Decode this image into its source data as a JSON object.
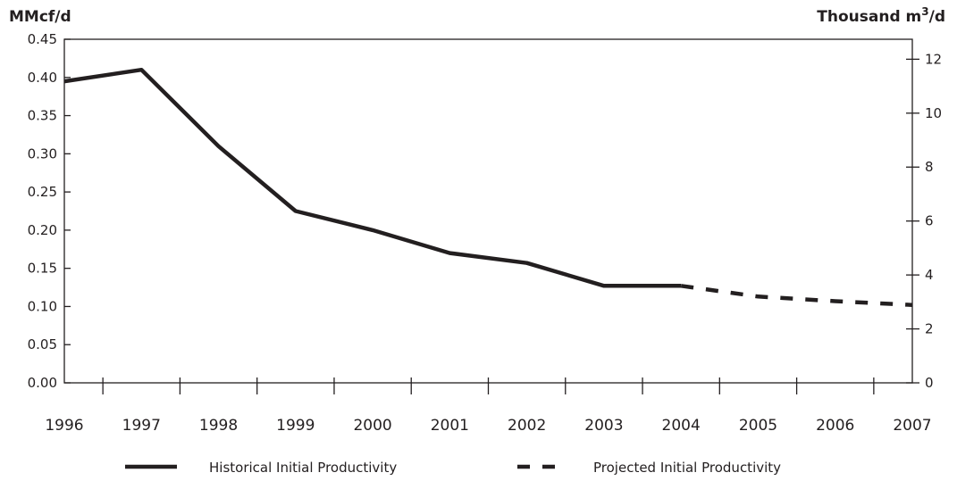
{
  "chart_data": {
    "type": "line",
    "title": "",
    "ylabel_left": "MMcf/d",
    "ylabel_right_prefix": "Thousand m",
    "ylabel_right_sup": "3",
    "ylabel_right_suffix": "/d",
    "xlabel": "",
    "x": [
      "1996",
      "1997",
      "1998",
      "1999",
      "2000",
      "2001",
      "2002",
      "2003",
      "2004",
      "2005",
      "2006",
      "2007"
    ],
    "ylim_left": [
      0,
      0.45
    ],
    "ylim_right": [
      0,
      12.74
    ],
    "left_ticks": [
      "0.00",
      "0.05",
      "0.10",
      "0.15",
      "0.20",
      "0.25",
      "0.30",
      "0.35",
      "0.40",
      "0.45"
    ],
    "right_ticks": [
      "0",
      "2",
      "4",
      "6",
      "8",
      "10",
      "12"
    ],
    "grid": false,
    "legend_position": "bottom",
    "series": [
      {
        "name": "Historical Initial Productivity",
        "style": "solid",
        "color": "#231f20",
        "points": [
          {
            "x": "1996",
            "y": 0.395
          },
          {
            "x": "1997",
            "y": 0.41
          },
          {
            "x": "1998",
            "y": 0.31
          },
          {
            "x": "1999",
            "y": 0.225
          },
          {
            "x": "2000",
            "y": 0.2
          },
          {
            "x": "2001",
            "y": 0.17
          },
          {
            "x": "2002",
            "y": 0.157
          },
          {
            "x": "2003",
            "y": 0.127
          },
          {
            "x": "2004",
            "y": 0.127
          }
        ]
      },
      {
        "name": "Projected Initial Productivity",
        "style": "dashed",
        "color": "#231f20",
        "points": [
          {
            "x": "2004",
            "y": 0.127
          },
          {
            "x": "2005",
            "y": 0.113
          },
          {
            "x": "2006",
            "y": 0.107
          },
          {
            "x": "2007",
            "y": 0.102
          }
        ]
      }
    ]
  }
}
